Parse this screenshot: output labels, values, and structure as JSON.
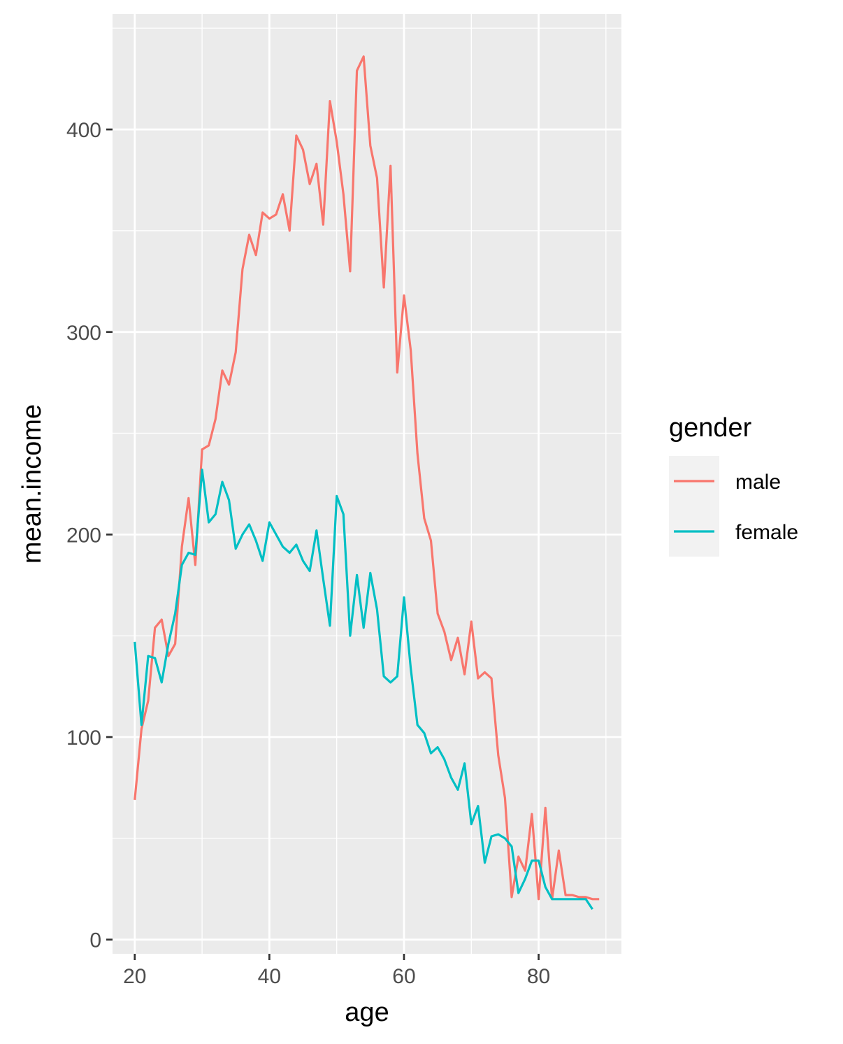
{
  "chart_data": {
    "type": "line",
    "xlabel": "age",
    "ylabel": "mean.income",
    "xlim": [
      16.7,
      92.3
    ],
    "ylim": [
      -7,
      457
    ],
    "x_ticks": [
      20,
      40,
      60,
      80
    ],
    "x_tick_labels": [
      "20",
      "40",
      "60",
      "80"
    ],
    "y_ticks": [
      0,
      100,
      200,
      300,
      400
    ],
    "y_tick_labels": [
      "0",
      "100",
      "200",
      "300",
      "400"
    ],
    "grid": true,
    "background": "#ebebeb",
    "legend": {
      "title": "gender",
      "placement": "right"
    },
    "series": [
      {
        "name": "male",
        "color": "#F8766D",
        "x": [
          20,
          21,
          22,
          23,
          24,
          25,
          26,
          27,
          28,
          29,
          30,
          31,
          32,
          33,
          34,
          35,
          36,
          37,
          38,
          39,
          40,
          41,
          42,
          43,
          44,
          45,
          46,
          47,
          48,
          49,
          50,
          51,
          52,
          53,
          54,
          55,
          56,
          57,
          58,
          59,
          60,
          61,
          62,
          63,
          64,
          65,
          66,
          67,
          68,
          69,
          70,
          71,
          72,
          73,
          74,
          75,
          76,
          77,
          78,
          79,
          80,
          81,
          82,
          83,
          84,
          85,
          86,
          87,
          88,
          89
        ],
        "values": [
          69,
          104,
          118,
          154,
          158,
          140,
          146,
          194,
          218,
          185,
          242,
          244,
          257,
          281,
          274,
          290,
          331,
          348,
          338,
          359,
          356,
          358,
          368,
          350,
          397,
          390,
          373,
          383,
          353,
          414,
          394,
          368,
          330,
          429,
          436,
          392,
          376,
          322,
          382,
          280,
          318,
          291,
          240,
          208,
          197,
          161,
          152,
          138,
          149,
          131,
          157,
          129,
          132,
          129,
          91,
          70,
          21,
          41,
          34,
          62,
          20,
          65,
          20,
          44,
          22,
          22,
          21,
          21,
          20,
          20
        ]
      },
      {
        "name": "female",
        "color": "#00BFC4",
        "x": [
          20,
          21,
          22,
          23,
          24,
          25,
          26,
          27,
          28,
          29,
          30,
          31,
          32,
          33,
          34,
          35,
          36,
          37,
          38,
          39,
          40,
          41,
          42,
          43,
          44,
          45,
          46,
          47,
          48,
          49,
          50,
          51,
          52,
          53,
          54,
          55,
          56,
          57,
          58,
          59,
          60,
          61,
          62,
          63,
          64,
          65,
          66,
          67,
          68,
          69,
          70,
          71,
          72,
          73,
          74,
          75,
          76,
          77,
          78,
          79,
          80,
          81,
          82,
          83,
          84,
          85,
          86,
          87,
          88
        ],
        "values": [
          147,
          106,
          140,
          139,
          127,
          146,
          161,
          185,
          191,
          190,
          232,
          206,
          210,
          226,
          217,
          193,
          200,
          205,
          197,
          187,
          206,
          200,
          194,
          191,
          195,
          187,
          182,
          202,
          178,
          155,
          219,
          210,
          150,
          180,
          154,
          181,
          163,
          130,
          127,
          130,
          169,
          134,
          106,
          102,
          92,
          95,
          89,
          80,
          74,
          87,
          57,
          66,
          38,
          51,
          52,
          50,
          46,
          23,
          30,
          39,
          39,
          26,
          20,
          20,
          20,
          20,
          20,
          20,
          15
        ]
      }
    ]
  }
}
